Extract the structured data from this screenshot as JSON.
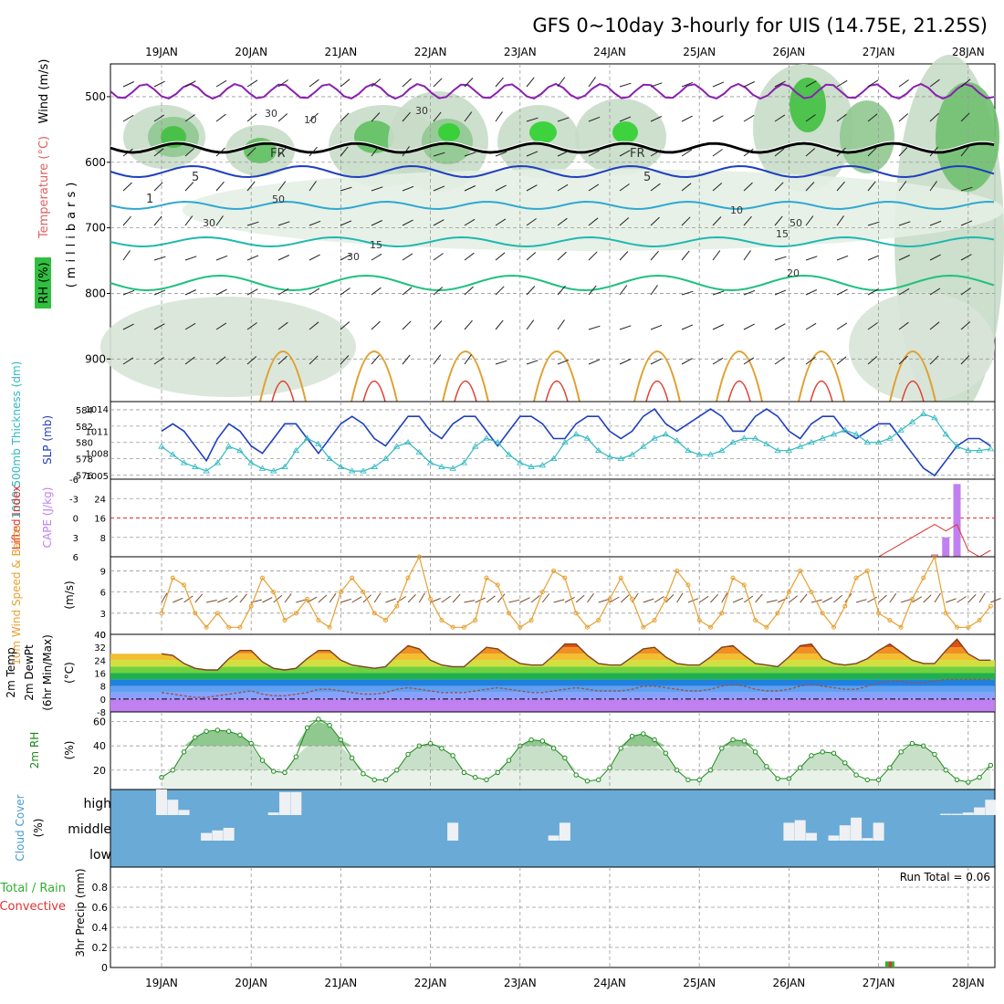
{
  "title": "GFS 0~10day 3-hourly for UIS (14.75E, 21.25S)",
  "dates": [
    "19JAN",
    "20JAN",
    "21JAN",
    "22JAN",
    "23JAN",
    "24JAN",
    "25JAN",
    "26JAN",
    "27JAN",
    "28JAN"
  ],
  "run_total_label": "Run Total = 0.06",
  "panels": {
    "upper": {
      "ylabel_wind": "Wind (m/s)",
      "ylabel_temp": "Temperature (°C)",
      "ylabel_rh": "RH (%)",
      "ylabel_mb": "(millibars)",
      "yticks": [
        "500",
        "600",
        "700",
        "800",
        "900"
      ],
      "contour_labels": [
        "FR",
        "FR",
        "5",
        "5",
        "10",
        "15",
        "15",
        "20",
        "30",
        "30",
        "50",
        "10",
        "30",
        "1",
        "30",
        "50"
      ]
    },
    "slp": {
      "ylabel_thick": "1000-500mb Thickness (dm)",
      "ylabel_slp": "SLP (mb)",
      "yticks_left": [
        "584",
        "582",
        "580",
        "578",
        "576"
      ],
      "yticks_right": [
        "1014",
        "1011",
        "1008",
        "1005"
      ]
    },
    "cape": {
      "ylabel_li": "Lifted Index",
      "ylabel_cape": "CAPE (J/kg)",
      "yticks_left": [
        "-6",
        "-3",
        "0",
        "3",
        "6"
      ],
      "yticks_right": [
        "24",
        "16",
        "8"
      ]
    },
    "wind10": {
      "ylabel": "10m Wind Speed & Barbs",
      "ylabel2": "(m/s)",
      "yticks": [
        "9",
        "6",
        "3",
        "0"
      ]
    },
    "temp2m": {
      "ylabel1": "2m Temp",
      "ylabel2": "2m DewPt",
      "ylabel3": "(6hr Min/Max)",
      "ylabel_unit": "(°C)",
      "yticks": [
        "40",
        "32",
        "24",
        "16",
        "8",
        "0",
        "-8"
      ]
    },
    "rh2m": {
      "ylabel": "2m RH",
      "ylabel_unit": "(%)",
      "yticks": [
        "60",
        "40",
        "20"
      ]
    },
    "cloud": {
      "ylabel": "Cloud Cover",
      "ylabel_unit": "(%)",
      "levels": [
        "high",
        "middle",
        "low"
      ]
    },
    "precip": {
      "ylabel_total": "Total / Rain",
      "ylabel_conv": "Convective",
      "ylabel_unit": "3hr Precip (mm)",
      "yticks": [
        "0.8",
        "0.6",
        "0.4",
        "0.2",
        "0"
      ]
    }
  },
  "colors": {
    "slp": "#1f3fbf",
    "thickness": "#2fb8c0",
    "li": "#e03030",
    "cape": "#c080f0",
    "wind10": "#e8a030",
    "dewpt": "#a05050",
    "rh_line": "#1a8a1a",
    "cloud": "#6aaad6",
    "rh_fill": "#70c070"
  },
  "chart_data": [
    {
      "type": "line",
      "panel": "slp-thickness",
      "x_unit": "forecast day (19JAN 00Z = 0)",
      "x": [
        0,
        0.125,
        0.25,
        0.375,
        0.5,
        0.625,
        0.75,
        0.875,
        1,
        1.125,
        1.25,
        1.375,
        1.5,
        1.625,
        1.75,
        1.875,
        2,
        2.125,
        2.25,
        2.375,
        2.5,
        2.625,
        2.75,
        2.875,
        3,
        3.125,
        3.25,
        3.375,
        3.5,
        3.625,
        3.75,
        3.875,
        4,
        4.125,
        4.25,
        4.375,
        4.5,
        4.625,
        4.75,
        4.875,
        5,
        5.125,
        5.25,
        5.375,
        5.5,
        5.625,
        5.75,
        5.875,
        6,
        6.125,
        6.25,
        6.375,
        6.5,
        6.625,
        6.75,
        6.875,
        7,
        7.125,
        7.25,
        7.375,
        7.5,
        7.625,
        7.75,
        7.875,
        8,
        8.125,
        8.25,
        8.375,
        8.5,
        8.625,
        8.75,
        8.875,
        9,
        9.125,
        9.25
      ],
      "series": [
        {
          "name": "SLP",
          "unit": "mb",
          "values": [
            1011,
            1012,
            1011,
            1009,
            1007,
            1010,
            1012,
            1011,
            1009,
            1008,
            1010,
            1012,
            1012,
            1010,
            1008,
            1010,
            1012,
            1013,
            1012,
            1010,
            1009,
            1011,
            1013,
            1013,
            1011,
            1010,
            1012,
            1013,
            1013,
            1011,
            1009,
            1011,
            1013,
            1013,
            1012,
            1010,
            1010,
            1012,
            1013,
            1013,
            1011,
            1010,
            1011,
            1013,
            1014,
            1012,
            1011,
            1012,
            1013,
            1014,
            1013,
            1011,
            1011,
            1013,
            1014,
            1013,
            1011,
            1010,
            1012,
            1013,
            1013,
            1011,
            1010,
            1011,
            1012,
            1012,
            1010,
            1008,
            1006,
            1005,
            1007,
            1009,
            1010,
            1010,
            1009
          ]
        },
        {
          "name": "Thickness",
          "unit": "dm",
          "values": [
            579.5,
            578.5,
            577.5,
            577,
            576.5,
            577.5,
            579.5,
            579,
            577.5,
            576.8,
            576.5,
            577,
            579,
            580.5,
            579.8,
            578,
            577,
            576.5,
            576.5,
            577,
            578,
            579.5,
            580,
            578.8,
            577.5,
            577,
            576.8,
            577.5,
            579.5,
            580.5,
            580,
            578.5,
            577.5,
            577,
            577.2,
            578,
            580,
            581,
            580.5,
            579,
            578.2,
            578,
            578.5,
            579.5,
            580.5,
            581,
            580.2,
            579,
            578.5,
            578.5,
            579,
            580,
            580.5,
            580.5,
            579.8,
            579,
            579,
            579.5,
            580,
            580.5,
            581,
            581.5,
            581,
            580,
            580,
            580.5,
            581.5,
            582.5,
            583.5,
            583,
            581,
            579.5,
            579,
            579,
            579.2
          ]
        }
      ],
      "y_left_range": [
        575.5,
        585
      ],
      "y_right_range": [
        1004.5,
        1015
      ]
    },
    {
      "type": "bar",
      "panel": "cape-li",
      "series": [
        {
          "name": "CAPE",
          "unit": "J/kg",
          "x": [
            8.625,
            8.75,
            8.875
          ],
          "values": [
            1,
            8,
            30
          ]
        },
        {
          "name": "Lifted Index",
          "x": [
            0,
            1,
            2,
            3,
            4,
            5,
            6,
            7,
            8,
            8.625,
            8.75,
            8.875,
            9,
            9.125,
            9.25
          ],
          "values": [
            6,
            6,
            6,
            6,
            6,
            6,
            6,
            6,
            6,
            1,
            2,
            1,
            5,
            6,
            5
          ]
        }
      ],
      "y_left_range": [
        6,
        -6
      ],
      "y_right_range": [
        0,
        32
      ]
    },
    {
      "type": "line",
      "panel": "wind10",
      "name": "10m wind speed",
      "unit": "m/s",
      "values": [
        3,
        8,
        7,
        3,
        1,
        3,
        1,
        1,
        4,
        8,
        6,
        2,
        3,
        5,
        2,
        1,
        6,
        8,
        6,
        3,
        2,
        4,
        8,
        11,
        5,
        2,
        1,
        1,
        2,
        8,
        7,
        3,
        1,
        2,
        6,
        9,
        8,
        3,
        1,
        2,
        5,
        8,
        5,
        1,
        2,
        5,
        9,
        7,
        2,
        1,
        3,
        8,
        7,
        2,
        1,
        3,
        6,
        9,
        6,
        3,
        1,
        4,
        8,
        9,
        3,
        2,
        1,
        5,
        8,
        11,
        3,
        1,
        1,
        2,
        4
      ],
      "ylim": [
        0,
        11
      ]
    },
    {
      "type": "area",
      "panel": "temp2m",
      "series": [
        {
          "name": "2m Temp",
          "unit": "°C",
          "values": [
            28,
            27,
            22,
            19,
            18,
            18,
            25,
            30,
            30,
            23,
            19,
            18,
            19,
            25,
            30,
            30,
            24,
            21,
            20,
            19,
            20,
            27,
            33,
            31,
            24,
            21,
            20,
            20,
            26,
            32,
            31,
            26,
            22,
            21,
            21,
            27,
            34,
            34,
            27,
            22,
            21,
            21,
            26,
            31,
            32,
            26,
            22,
            21,
            21,
            26,
            32,
            33,
            27,
            22,
            21,
            20,
            26,
            33,
            34,
            25,
            22,
            21,
            22,
            25,
            30,
            34,
            29,
            24,
            22,
            22,
            30,
            37,
            28,
            24,
            24
          ]
        },
        {
          "name": "2m DewPt",
          "unit": "°C",
          "values": [
            4,
            3,
            2,
            1,
            1,
            2,
            3,
            4,
            5,
            3,
            2,
            2,
            3,
            4,
            6,
            6,
            5,
            4,
            3,
            3,
            4,
            6,
            7,
            6,
            5,
            4,
            4,
            4,
            5,
            6,
            7,
            6,
            5,
            4,
            4,
            5,
            6,
            7,
            6,
            5,
            5,
            5,
            6,
            8,
            8,
            7,
            6,
            5,
            5,
            6,
            8,
            9,
            8,
            6,
            5,
            5,
            6,
            8,
            9,
            8,
            7,
            6,
            6,
            8,
            10,
            11,
            11,
            10,
            10,
            11,
            12,
            12,
            12,
            12,
            12
          ]
        }
      ],
      "ylim": [
        -8,
        40
      ]
    },
    {
      "type": "area",
      "panel": "rh2m",
      "name": "2m RH",
      "unit": "%",
      "values": [
        14,
        20,
        35,
        47,
        52,
        53,
        52,
        49,
        42,
        28,
        19,
        18,
        31,
        55,
        62,
        57,
        45,
        30,
        17,
        12,
        12,
        20,
        33,
        40,
        42,
        38,
        32,
        18,
        14,
        12,
        18,
        28,
        40,
        45,
        44,
        38,
        30,
        16,
        11,
        12,
        22,
        38,
        48,
        50,
        45,
        34,
        20,
        12,
        12,
        20,
        38,
        45,
        44,
        35,
        23,
        13,
        13,
        22,
        32,
        35,
        34,
        26,
        16,
        12,
        12,
        22,
        35,
        42,
        40,
        33,
        20,
        12,
        10,
        14,
        24
      ],
      "ylim": [
        4,
        68
      ]
    },
    {
      "type": "bar",
      "panel": "cloud",
      "series": [
        {
          "name": "high",
          "unit": "%",
          "x": [
            0,
            0.125,
            0.25,
            1.25,
            1.375,
            1.5,
            8.75,
            8.875,
            9,
            9.125,
            9.25
          ],
          "values": [
            1,
            0.6,
            0.2,
            0.1,
            0.9,
            0.9,
            0.05,
            0.05,
            0.1,
            0.3,
            0.6
          ]
        },
        {
          "name": "middle",
          "unit": "%",
          "x": [
            0.5,
            0.625,
            0.75,
            3.25,
            4.375,
            4.5,
            7,
            7.125,
            7.25,
            7.5,
            7.625,
            7.75,
            7.875,
            8
          ],
          "values": [
            0.3,
            0.4,
            0.5,
            0.7,
            0.2,
            0.7,
            0.7,
            0.8,
            0.3,
            0.2,
            0.6,
            0.9,
            0.1,
            0.7
          ]
        },
        {
          "name": "low",
          "unit": "%",
          "values": []
        }
      ]
    },
    {
      "type": "bar",
      "panel": "precip",
      "name": "3hr Precip",
      "unit": "mm",
      "x": [
        8.125
      ],
      "values": [
        0.06
      ],
      "ylim": [
        0,
        1
      ]
    }
  ]
}
